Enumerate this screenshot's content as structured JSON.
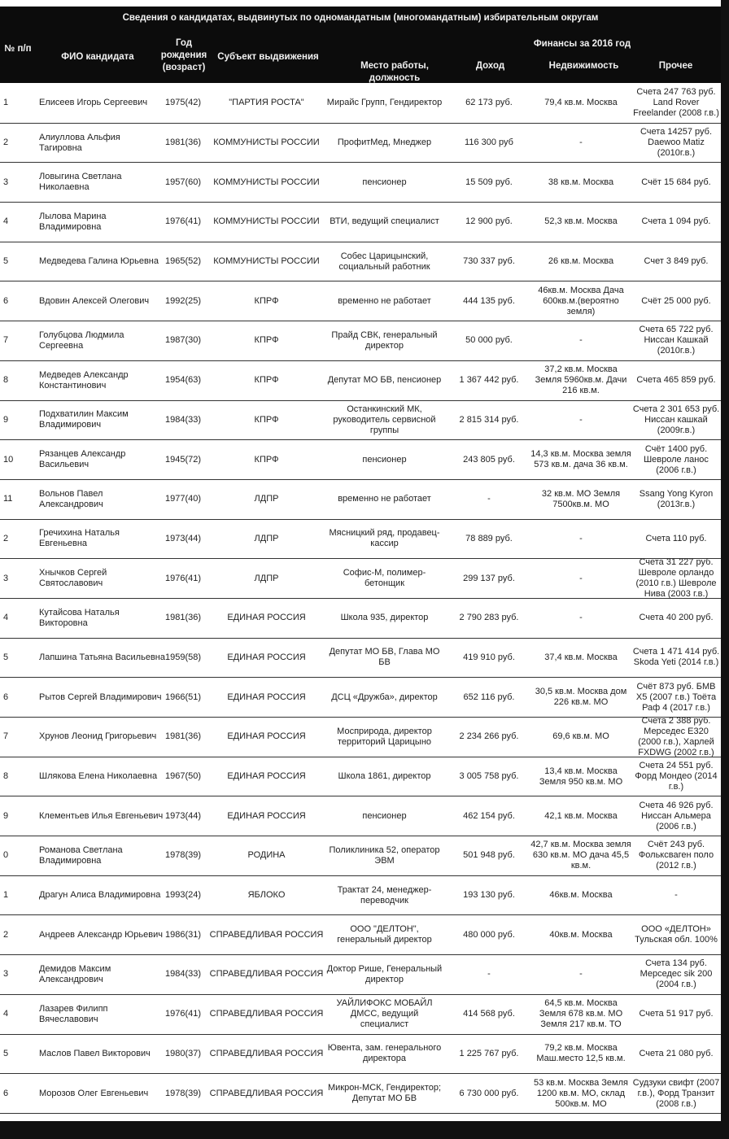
{
  "header": {
    "title": "Сведения о кандидатах, выдвинутых по одномандатным (многомандатным) избирательным округам",
    "finance_group": "Финансы за 2016 год",
    "columns": [
      "№ п/п",
      "ФИО кандидата",
      "Год рождения (возраст)",
      "Субъект выдвижения",
      "Место работы, должность",
      "Доход",
      "Недвижимость",
      "Прочее"
    ]
  },
  "rows": [
    [
      "1",
      "Елисеев Игорь Сергеевич",
      "1975(42)",
      "\"ПАРТИЯ РОСТА\"",
      "Мирайс Групп, Гендиректор",
      "62 173 руб.",
      "79,4 кв.м. Москва",
      "Счета 247 763 руб. Land Rover Freelander (2008 г.в.)"
    ],
    [
      "2",
      "Алиуллова Альфия Тагировна",
      "1981(36)",
      "КОММУНИСТЫ РОССИИ",
      "ПрофитМед, Мнеджер",
      "116 300 руб",
      "-",
      "Счета 14257 руб. Daewoo Matiz (2010г.в.)"
    ],
    [
      "3",
      "Ловыгина Светлана Николаевна",
      "1957(60)",
      "КОММУНИСТЫ РОССИИ",
      "пенсионер",
      "15 509 руб.",
      "38 кв.м. Москва",
      "Счёт 15 684 руб."
    ],
    [
      "4",
      "Лылова Марина Владимировна",
      "1976(41)",
      "КОММУНИСТЫ РОССИИ",
      "ВТИ, ведущий специалист",
      "12 900 руб.",
      "52,3 кв.м. Москва",
      "Счета 1 094 руб."
    ],
    [
      "5",
      "Медведева Галина Юрьевна",
      "1965(52)",
      "КОММУНИСТЫ РОССИИ",
      "Собес Царицынский, социальный работник",
      "730 337 руб.",
      "26 кв.м. Москва",
      "Счет 3 849 руб."
    ],
    [
      "6",
      "Вдовин Алексей Олегович",
      "1992(25)",
      "КПРФ",
      "временно не работает",
      "444 135 руб.",
      "46кв.м. Москва Дача 600кв.м.(вероятно земля)",
      "Счёт 25 000 руб."
    ],
    [
      "7",
      "Голубцова Людмила Сергеевна",
      "1987(30)",
      "КПРФ",
      "Прайд СВК, генеральный директор",
      "50 000 руб.",
      "-",
      "Счета 65 722 руб. Ниссан Кашкай (2010г.в.)"
    ],
    [
      "8",
      "Медведев Александр Константинович",
      "1954(63)",
      "КПРФ",
      "Депутат МО БВ, пенсионер",
      "1 367 442 руб.",
      "37,2 кв.м. Москва Земля 5960кв.м. Дачи 216 кв.м.",
      "Счета 465 859 руб."
    ],
    [
      "9",
      "Подхватилин Максим Владимирович",
      "1984(33)",
      "КПРФ",
      "Останкинский МК, руководитель сервисной группы",
      "2 815 314 руб.",
      "-",
      "Счета 2 301 653 руб. Ниссан кашкай (2009г.в.)"
    ],
    [
      "10",
      "Рязанцев Александр Васильевич",
      "1945(72)",
      "КПРФ",
      "пенсионер",
      "243 805 руб.",
      "14,3 кв.м. Москва земля 573 кв.м. дача 36 кв.м.",
      "Счёт 1400 руб. Шевроле ланос (2006 г.в.)"
    ],
    [
      "11",
      "Вольнов Павел Александрович",
      "1977(40)",
      "ЛДПР",
      "временно не работает",
      "-",
      "32 кв.м. МО Земля 7500кв.м. МО",
      "Ssang Yong Kyron (2013г.в.)"
    ],
    [
      "2",
      "Гречихина Наталья Евгеньевна",
      "1973(44)",
      "ЛДПР",
      "Мясницкий ряд, продавец-кассир",
      "78 889 руб.",
      "-",
      "Счета 110 руб."
    ],
    [
      "3",
      "Хнычков Сергей Святославович",
      "1976(41)",
      "ЛДПР",
      "Софис-М, полимер-бетонщик",
      "299 137 руб.",
      "-",
      "Счета 31 227 руб. Шевроле орландо (2010 г.в.) Шевроле Нива (2003 г.в.)"
    ],
    [
      "4",
      "Кутайсова Наталья Викторовна",
      "1981(36)",
      "ЕДИНАЯ РОССИЯ",
      "Школа 935, директор",
      "2 790 283 руб.",
      "-",
      "Счета 40 200 руб."
    ],
    [
      "5",
      "Лапшина Татьяна Васильевна",
      "1959(58)",
      "ЕДИНАЯ РОССИЯ",
      "Депутат МО БВ, Глава МО БВ",
      "419 910 руб.",
      "37,4 кв.м. Москва",
      "Счета 1 471 414 руб. Skoda Yeti (2014 г.в.)"
    ],
    [
      "6",
      "Рытов Сергей Владимирович",
      "1966(51)",
      "ЕДИНАЯ РОССИЯ",
      "ДСЦ «Дружба», директор",
      "652 116 руб.",
      "30,5 кв.м. Москва дом 226 кв.м. МО",
      "Счёт 873 руб. БМВ X5 (2007 г.в.) Тоёта Раф 4 (2017 г.в.)"
    ],
    [
      "7",
      "Хрунов Леонид Григорьевич",
      "1981(36)",
      "ЕДИНАЯ РОССИЯ",
      "Мосприрода, директор территорий Царицыно",
      "2 234 266 руб.",
      "69,6 кв.м. МО",
      "Счета 2 388 руб. Мерседес E320 (2000 г.в.), Харлей FXDWG (2002 г.в.)"
    ],
    [
      "8",
      "Шлякова Елена Николаевна",
      "1967(50)",
      "ЕДИНАЯ РОССИЯ",
      "Школа 1861, директор",
      "3 005 758 руб.",
      "13,4 кв.м. Москва Земля 950 кв.м. МО",
      "Счета 24 551 руб. Форд Мондео (2014 г.в.)"
    ],
    [
      "9",
      "Клементьев Илья Евгеньевич",
      "1973(44)",
      "ЕДИНАЯ РОССИЯ",
      "пенсионер",
      "462 154 руб.",
      "42,1 кв.м. Москва",
      "Счета 46 926 руб. Ниссан Альмера (2006 г.в.)"
    ],
    [
      "0",
      "Романова Светлана Владимировна",
      "1978(39)",
      "РОДИНА",
      "Поликлиника 52, оператор ЭВМ",
      "501 948 руб.",
      "42,7 кв.м. Москва земля 630 кв.м. МО дача 45,5 кв.м.",
      "Счёт 243 руб. Фольксваген поло (2012 г.в.)"
    ],
    [
      "1",
      "Драгун Алиса Владимировна",
      "1993(24)",
      "ЯБЛОКО",
      "Трактат 24, менеджер-переводчик",
      "193 130 руб.",
      "46кв.м. Москва",
      "-"
    ],
    [
      "2",
      "Андреев Александр Юрьевич",
      "1986(31)",
      "СПРАВЕДЛИВАЯ РОССИЯ",
      "ООО \"ДЕЛТОН\", генеральный директор",
      "480 000 руб.",
      "40кв.м. Москва",
      "ООО «ДЕЛТОН» Тульская обл. 100%"
    ],
    [
      "3",
      "Демидов Максим Александрович",
      "1984(33)",
      "СПРАВЕДЛИВАЯ РОССИЯ",
      "Доктор Рише, Генеральный директор",
      "-",
      "-",
      "Счета 134 руб. Мерседес sik 200 (2004 г.в.)"
    ],
    [
      "4",
      "Лазарев Филипп Вячеславович",
      "1976(41)",
      "СПРАВЕДЛИВАЯ РОССИЯ",
      "УАЙЛИФОКС МОБАЙЛ ДМСС, ведущий специалист",
      "414 568 руб.",
      "64,5 кв.м. Москва Земля 678 кв.м. МО Земля 217 кв.м. ТО",
      "Счета 51 917 руб."
    ],
    [
      "5",
      "Маслов Павел Викторович",
      "1980(37)",
      "СПРАВЕДЛИВАЯ РОССИЯ",
      "Ювента, зам. генерального директора",
      "1 225 767 руб.",
      "79,2 кв.м. Москва Маш.место 12,5 кв.м.",
      "Счета 21 080 руб."
    ],
    [
      "6",
      "Морозов Олег Евгеньевич",
      "1978(39)",
      "СПРАВЕДЛИВАЯ РОССИЯ",
      "Микрон-МСК, Гендиректор; Депутат МО БВ",
      "6 730 000 руб.",
      "53 кв.м. Москва Земля 1200 кв.м. МО, склад 500кв.м. МО",
      "Судзуки свифт (2007 г.в.), Форд Транзит (2008 г.в.)"
    ]
  ]
}
